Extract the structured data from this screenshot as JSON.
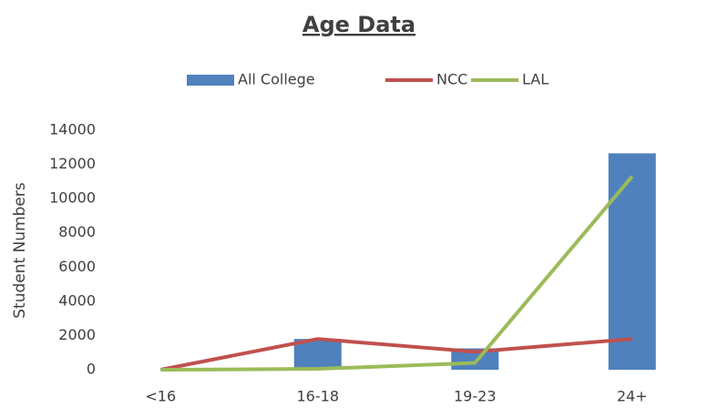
{
  "chart_data": {
    "type": "bar",
    "title": "Age Data",
    "y_label": "Student Numbers",
    "categories": [
      "<16",
      "16-18",
      "19-23",
      "24+"
    ],
    "series": [
      {
        "name": "All College",
        "type": "bar",
        "color": "#4f81bd",
        "values": [
          0,
          1800,
          1250,
          12650
        ]
      },
      {
        "name": "NCC",
        "type": "line",
        "color": "#c0504d",
        "values": [
          0,
          1800,
          1050,
          1800
        ]
      },
      {
        "name": "LAL",
        "type": "line",
        "color": "#9bbb59",
        "values": [
          0,
          50,
          400,
          11300
        ]
      }
    ],
    "ylim": [
      0,
      14000
    ],
    "yticks": [
      0,
      2000,
      4000,
      6000,
      8000,
      10000,
      12000,
      14000
    ],
    "grid": false,
    "legend": "top"
  }
}
